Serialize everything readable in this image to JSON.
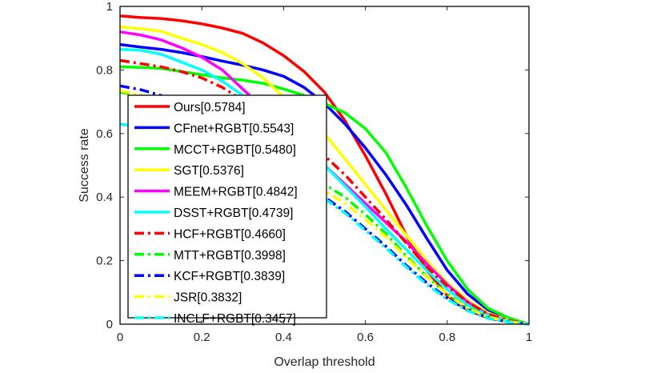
{
  "chart_data": {
    "type": "line",
    "title": "",
    "xlabel": "Overlap threshold",
    "ylabel": "Success rate",
    "xlim": [
      0,
      1
    ],
    "ylim": [
      0,
      1
    ],
    "xticks": [
      0,
      0.2,
      0.4,
      0.6,
      0.8,
      1
    ],
    "yticks": [
      0,
      0.2,
      0.4,
      0.6,
      0.8,
      1
    ],
    "xtick_labels": [
      "0",
      "0.2",
      "0.4",
      "0.6",
      "0.8",
      "1"
    ],
    "ytick_labels": [
      "0",
      "0.2",
      "0.4",
      "0.6",
      "0.8",
      "1"
    ],
    "grid": false,
    "legend_position": "center-left",
    "x": [
      0,
      0.05,
      0.1,
      0.15,
      0.2,
      0.25,
      0.3,
      0.35,
      0.4,
      0.45,
      0.5,
      0.55,
      0.6,
      0.65,
      0.7,
      0.75,
      0.8,
      0.85,
      0.9,
      0.95,
      1
    ],
    "series": [
      {
        "name": "Ours[0.5784]",
        "color": "#ff0000",
        "dash": "solid",
        "values": [
          0.97,
          0.965,
          0.962,
          0.955,
          0.945,
          0.932,
          0.915,
          0.885,
          0.845,
          0.795,
          0.73,
          0.64,
          0.53,
          0.41,
          0.28,
          0.17,
          0.09,
          0.045,
          0.02,
          0.008,
          0.0
        ]
      },
      {
        "name": "CFnet+RGBT[0.5543]",
        "color": "#0000ff",
        "dash": "solid",
        "values": [
          0.88,
          0.872,
          0.865,
          0.855,
          0.842,
          0.828,
          0.815,
          0.8,
          0.78,
          0.745,
          0.695,
          0.63,
          0.555,
          0.47,
          0.375,
          0.27,
          0.17,
          0.095,
          0.045,
          0.015,
          0.0
        ]
      },
      {
        "name": "MCCT+RGBT[0.5480]",
        "color": "#00ff00",
        "dash": "solid",
        "values": [
          0.81,
          0.808,
          0.805,
          0.795,
          0.785,
          0.775,
          0.768,
          0.758,
          0.74,
          0.72,
          0.695,
          0.665,
          0.615,
          0.54,
          0.43,
          0.31,
          0.2,
          0.11,
          0.05,
          0.02,
          0.0
        ]
      },
      {
        "name": "SGT[0.5376]",
        "color": "#ffff00",
        "dash": "solid",
        "values": [
          0.935,
          0.93,
          0.922,
          0.9,
          0.88,
          0.855,
          0.82,
          0.775,
          0.715,
          0.665,
          0.6,
          0.52,
          0.44,
          0.36,
          0.28,
          0.2,
          0.13,
          0.075,
          0.035,
          0.012,
          0.0
        ]
      },
      {
        "name": "MEEM+RGBT[0.4842]",
        "color": "#ff00ff",
        "dash": "solid",
        "values": [
          0.92,
          0.91,
          0.895,
          0.87,
          0.84,
          0.8,
          0.74,
          0.68,
          0.61,
          0.555,
          0.5,
          0.44,
          0.38,
          0.32,
          0.26,
          0.19,
          0.125,
          0.07,
          0.03,
          0.01,
          0.0
        ]
      },
      {
        "name": "DSST+RGBT[0.4739]",
        "color": "#00ffff",
        "dash": "solid",
        "values": [
          0.865,
          0.862,
          0.85,
          0.825,
          0.8,
          0.765,
          0.72,
          0.66,
          0.6,
          0.55,
          0.5,
          0.435,
          0.37,
          0.3,
          0.235,
          0.17,
          0.11,
          0.06,
          0.028,
          0.01,
          0.0
        ]
      },
      {
        "name": "HCF+RGBT[0.4660]",
        "color": "#ff0000",
        "dash": "dashdot",
        "values": [
          0.83,
          0.82,
          0.81,
          0.795,
          0.775,
          0.745,
          0.705,
          0.655,
          0.6,
          0.57,
          0.53,
          0.47,
          0.4,
          0.33,
          0.255,
          0.18,
          0.12,
          0.07,
          0.032,
          0.012,
          0.0
        ]
      },
      {
        "name": "MTT+RGBT[0.3998]",
        "color": "#00ff00",
        "dash": "dashdot",
        "values": [
          0.73,
          0.72,
          0.705,
          0.68,
          0.645,
          0.6,
          0.55,
          0.5,
          0.47,
          0.455,
          0.44,
          0.4,
          0.345,
          0.285,
          0.215,
          0.15,
          0.095,
          0.052,
          0.024,
          0.008,
          0.0
        ]
      },
      {
        "name": "KCF+RGBT[0.3839]",
        "color": "#0000ff",
        "dash": "dashdot",
        "values": [
          0.75,
          0.738,
          0.72,
          0.69,
          0.65,
          0.6,
          0.545,
          0.49,
          0.45,
          0.425,
          0.4,
          0.355,
          0.3,
          0.245,
          0.185,
          0.13,
          0.082,
          0.045,
          0.02,
          0.007,
          0.0
        ]
      },
      {
        "name": "JSR[0.3832]",
        "color": "#ffff00",
        "dash": "dashdot",
        "values": [
          0.735,
          0.72,
          0.7,
          0.67,
          0.635,
          0.59,
          0.54,
          0.49,
          0.46,
          0.44,
          0.42,
          0.38,
          0.33,
          0.275,
          0.21,
          0.148,
          0.094,
          0.05,
          0.022,
          0.008,
          0.0
        ]
      },
      {
        "name": "INCLF+RGBT[0.3457]",
        "color": "#00ffff",
        "dash": "dashdot",
        "values": [
          0.63,
          0.62,
          0.605,
          0.585,
          0.56,
          0.53,
          0.49,
          0.45,
          0.43,
          0.415,
          0.395,
          0.35,
          0.295,
          0.24,
          0.18,
          0.125,
          0.078,
          0.042,
          0.018,
          0.006,
          0.0
        ]
      }
    ]
  }
}
